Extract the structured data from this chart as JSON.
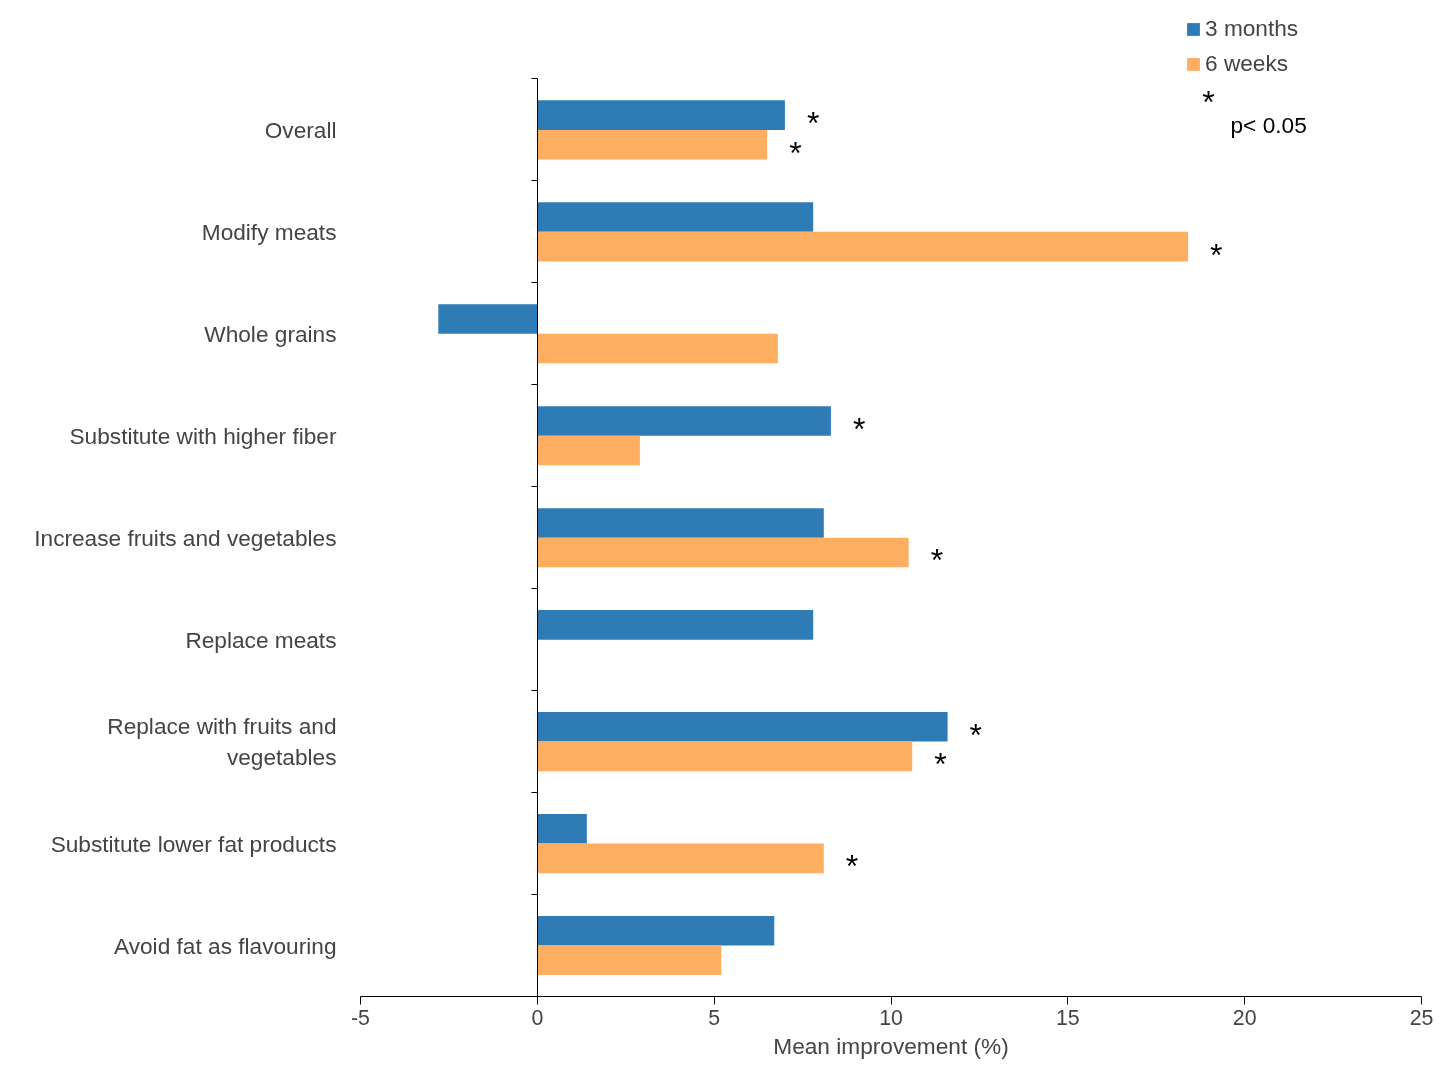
{
  "chart_data": {
    "type": "bar",
    "orientation": "horizontal",
    "xlabel": "Mean improvement (%)",
    "categories": [
      "Overall",
      "Modify meats",
      "Whole grains",
      "Substitute with higher fiber",
      "Increase fruits and vegetables",
      "Replace meats",
      "Replace with fruits and\nvegetables",
      "Substitute lower fat products",
      "Avoid fat as flavouring"
    ],
    "series": [
      {
        "name": "3 months",
        "color": "#2e7bb6",
        "values": [
          7.0,
          7.8,
          -2.8,
          8.3,
          8.1,
          7.8,
          11.6,
          1.4,
          6.7
        ],
        "value_labels": [
          "*",
          null,
          null,
          "*",
          null,
          null,
          "*",
          null,
          null
        ]
      },
      {
        "name": "6 weeks",
        "color": "#fdae61",
        "values": [
          6.5,
          18.4,
          6.8,
          2.9,
          10.5,
          null,
          10.6,
          8.1,
          5.2
        ],
        "value_labels": [
          "*",
          "*",
          null,
          null,
          "*",
          null,
          "*",
          "*",
          null
        ]
      }
    ],
    "xlim": [
      -5,
      25
    ],
    "xticks": [
      -5,
      0,
      5,
      10,
      15,
      20,
      25
    ],
    "legend": "top right",
    "annotations": [
      "*",
      "p< 0.05"
    ]
  }
}
